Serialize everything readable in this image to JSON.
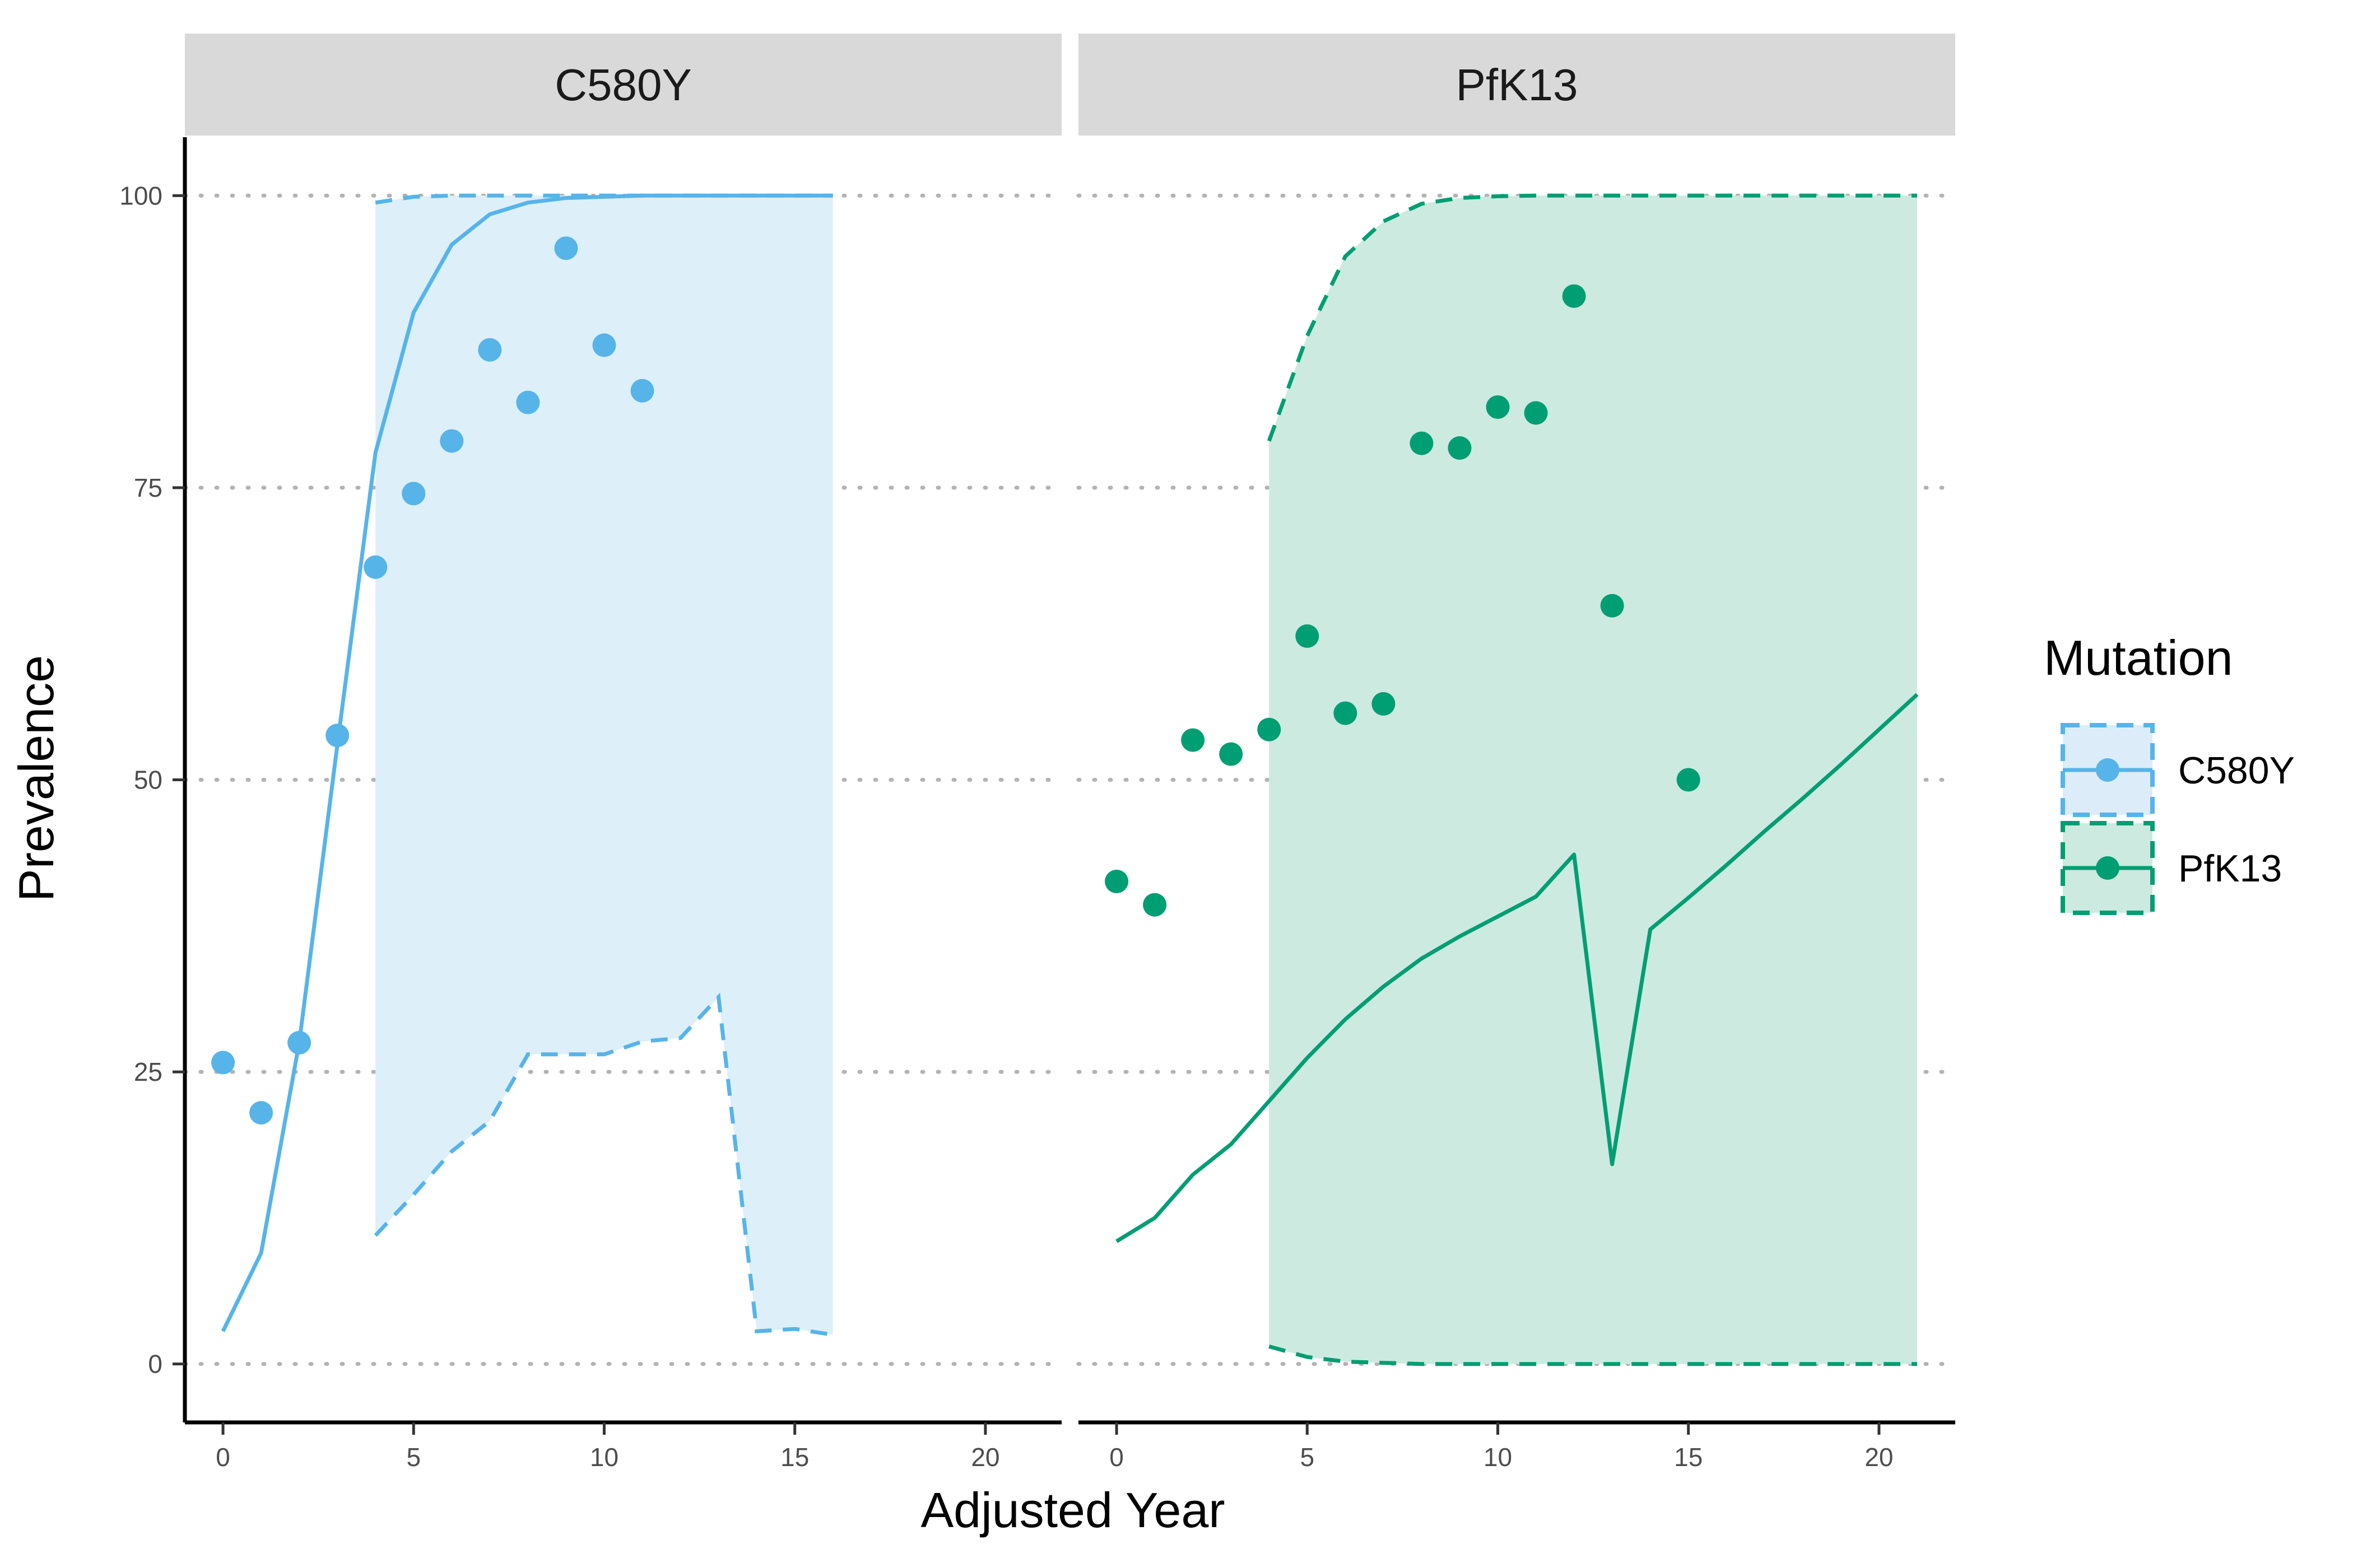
{
  "chart_data": {
    "type": "line",
    "xlabel": "Adjusted Year",
    "ylabel": "Prevalence",
    "xlim": [
      -1,
      22
    ],
    "ylim": [
      -5,
      105
    ],
    "x_ticks": [
      0,
      5,
      10,
      15,
      20
    ],
    "y_ticks": [
      0,
      25,
      50,
      75,
      100
    ],
    "grid": "horizontal dotted",
    "legend": {
      "title": "Mutation",
      "position": "right",
      "items": [
        {
          "label": "C580Y",
          "color": "#56B4E9",
          "fill": "#dcedf9"
        },
        {
          "label": "PfK13",
          "color": "#009E73",
          "fill": "#cceadf"
        }
      ]
    },
    "panels": [
      {
        "strip": "C580Y",
        "color": "#56B4E9",
        "fill": "#ddeff9",
        "points": {
          "x": [
            0,
            1,
            2,
            3,
            4,
            5,
            6,
            7,
            8,
            9,
            10,
            11
          ],
          "y": [
            25.8,
            21.5,
            27.5,
            53.8,
            68.2,
            74.5,
            79.0,
            86.8,
            82.3,
            95.5,
            87.2,
            83.3
          ]
        },
        "line": {
          "x": [
            0,
            1,
            2,
            3,
            4,
            5,
            6,
            7,
            8,
            9,
            10,
            11,
            12,
            13,
            14,
            15,
            16
          ],
          "y": [
            2.8,
            9.5,
            27.5,
            53.0,
            78.0,
            90.0,
            95.8,
            98.4,
            99.4,
            99.8,
            99.9,
            100,
            100,
            100,
            100,
            100,
            100
          ]
        },
        "band": {
          "x": [
            4,
            5,
            6,
            7,
            8,
            9,
            10,
            11,
            12,
            13,
            14,
            15,
            16
          ],
          "lower": [
            11.0,
            14.5,
            18.2,
            20.8,
            26.5,
            26.5,
            26.5,
            27.6,
            27.9,
            31.4,
            2.8,
            3.0,
            2.5
          ],
          "upper": [
            99.4,
            99.9,
            100,
            100,
            100,
            100,
            100,
            100,
            100,
            100,
            100,
            100,
            100
          ]
        }
      },
      {
        "strip": "PfK13",
        "color": "#009E73",
        "fill": "#cceae0",
        "points": {
          "x": [
            0,
            1,
            2,
            3,
            4,
            5,
            6,
            7,
            8,
            9,
            10,
            11,
            12,
            13,
            15
          ],
          "y": [
            41.3,
            39.3,
            53.4,
            52.2,
            54.3,
            62.3,
            55.7,
            56.5,
            78.8,
            78.4,
            81.9,
            81.4,
            91.4,
            64.9,
            50.0
          ]
        },
        "line": {
          "x": [
            0,
            1,
            2,
            3,
            4,
            5,
            6,
            7,
            8,
            9,
            10,
            11,
            12,
            13,
            14,
            15,
            16,
            17,
            18,
            19,
            20,
            21
          ],
          "y": [
            10.5,
            12.5,
            16.2,
            18.8,
            22.5,
            26.2,
            29.5,
            32.3,
            34.7,
            36.6,
            38.3,
            40.0,
            43.6,
            17.1,
            37.2,
            39.9,
            42.7,
            45.6,
            48.4,
            51.3,
            54.3,
            57.3
          ]
        },
        "band": {
          "x": [
            4,
            5,
            6,
            7,
            8,
            9,
            10,
            11,
            12,
            13,
            14,
            15,
            16,
            17,
            18,
            19,
            20,
            21
          ],
          "lower": [
            1.5,
            0.6,
            0.2,
            0.1,
            0,
            0,
            0,
            0,
            0,
            0,
            0,
            0,
            0,
            0,
            0,
            0,
            0,
            0
          ],
          "upper": [
            79.0,
            88.0,
            94.8,
            97.8,
            99.3,
            99.8,
            99.95,
            100,
            100,
            100,
            100,
            100,
            100,
            100,
            100,
            100,
            100,
            100
          ]
        }
      }
    ]
  }
}
